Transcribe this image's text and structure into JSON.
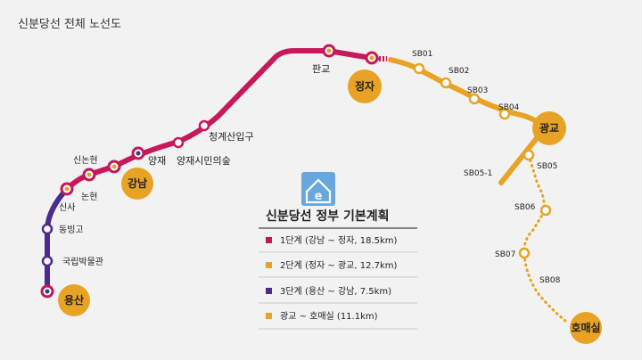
{
  "title": "신분당선 전체 노선도",
  "colors": {
    "phase1": "#c8175a",
    "phase2": "#e8a325",
    "phase3": "#4a2b8f",
    "extension": "#e8a325",
    "major_circle": "#e8a325"
  },
  "stations": {
    "yongsan": "용산",
    "gukrip": "국립박물관",
    "dongbinggo": "동빙고",
    "sinsa": "신사",
    "nonhyeon": "논현",
    "sinnonhyeon": "신논현",
    "gangnam": "강남",
    "yangjae": "양재",
    "yangjae_forest": "양재시민의숲",
    "cheonggye": "청계산입구",
    "pangyo": "판교",
    "jeongja": "정자",
    "sb01": "SB01",
    "sb02": "SB02",
    "sb03": "SB03",
    "sb04": "SB04",
    "gwanggyo": "광교",
    "sb05_1": "SB05-1",
    "sb05": "SB05",
    "sb06": "SB06",
    "sb07": "SB07",
    "sb08": "SB08",
    "homaesil": "호매실"
  },
  "legend": {
    "title": "신분당선 정부 기본계획",
    "items": [
      {
        "text": "1단계 (강남 ~ 정자, 18.5km)"
      },
      {
        "text": "2단계 (정자 ~ 광교, 12.7km)"
      },
      {
        "text": "3단계 (용산 ~ 강남, 7.5km)"
      },
      {
        "text": "광교 ~ 호매실 (11.1km)"
      }
    ]
  }
}
